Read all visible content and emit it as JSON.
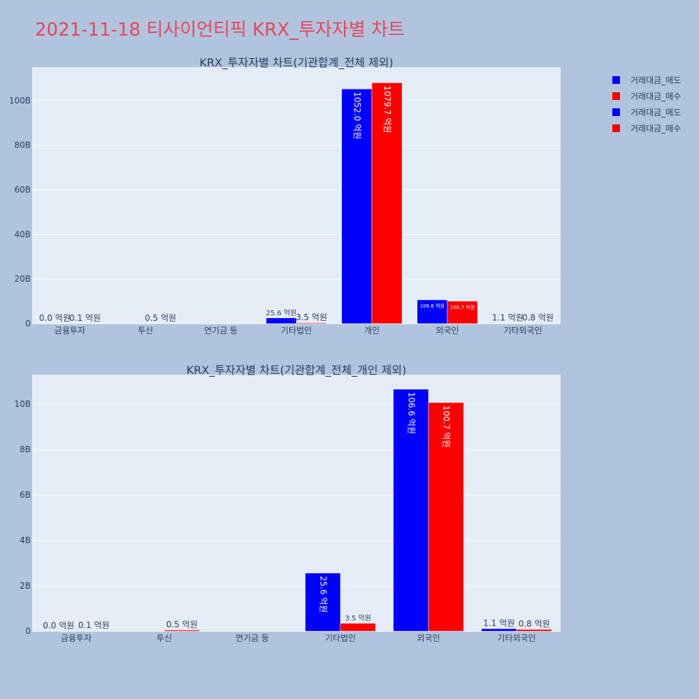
{
  "page_title": "2021-11-18 티사이언티픽 KRX_투자자별 차트",
  "colors": {
    "sell": "#0000ff",
    "buy": "#ff0000",
    "plot_bg": "#e5ecf6",
    "page_bg": "#b0c4de"
  },
  "legend": [
    {
      "label": "거래대금_매도",
      "color": "#0000ff"
    },
    {
      "label": "거래대금_매수",
      "color": "#ff0000"
    },
    {
      "label": "거래대금_매도",
      "color": "#0000ff"
    },
    {
      "label": "거래대금_매수",
      "color": "#ff0000"
    }
  ],
  "chart_data": [
    {
      "type": "bar",
      "title": "KRX_투자자별 차트(기관합계_전체 제외)",
      "categories": [
        "금융투자",
        "투신",
        "연기금 등",
        "기타법인",
        "개인",
        "외국인",
        "기타외국인"
      ],
      "ylim": [
        0,
        115
      ],
      "yticks": [
        0,
        20,
        40,
        60,
        80,
        100
      ],
      "ytick_labels": [
        "0",
        "20B",
        "40B",
        "60B",
        "80B",
        "100B"
      ],
      "series": [
        {
          "name": "거래대금_매도",
          "values": [
            0.0,
            0.0,
            0.0,
            2.56,
            105.2,
            10.66,
            0.11
          ],
          "labels": [
            "0.0 억원",
            "",
            "",
            "25.6 억원",
            "1052.0 억원",
            "106.6 억원",
            "1.1 억원"
          ]
        },
        {
          "name": "거래대금_매수",
          "values": [
            0.01,
            0.05,
            0.0,
            0.35,
            107.97,
            10.07,
            0.08
          ],
          "labels": [
            "0.1 억원",
            "0.5 억원",
            "",
            "3.5 억원",
            "1079.7 억원",
            "100.7 억원",
            "0.8 억원"
          ]
        }
      ]
    },
    {
      "type": "bar",
      "title": "KRX_투자자별 차트(기관합계_전체_개인 제외)",
      "categories": [
        "금융투자",
        "투신",
        "연기금 등",
        "기타법인",
        "외국인",
        "기타외국인"
      ],
      "ylim": [
        0,
        11.3
      ],
      "yticks": [
        0,
        2,
        4,
        6,
        8,
        10
      ],
      "ytick_labels": [
        "0",
        "2B",
        "4B",
        "6B",
        "8B",
        "10B"
      ],
      "series": [
        {
          "name": "거래대금_매도",
          "values": [
            0.0,
            0.0,
            0.0,
            2.56,
            10.66,
            0.11
          ],
          "labels": [
            "0.0 억원",
            "",
            "",
            "25.6 억원",
            "106.6 억원",
            "1.1 억원"
          ]
        },
        {
          "name": "거래대금_매수",
          "values": [
            0.01,
            0.05,
            0.0,
            0.35,
            10.07,
            0.08
          ],
          "labels": [
            "0.1 억원",
            "0.5 억원",
            "",
            "3.5 억원",
            "100.7 억원",
            "0.8 억원"
          ]
        }
      ]
    }
  ]
}
